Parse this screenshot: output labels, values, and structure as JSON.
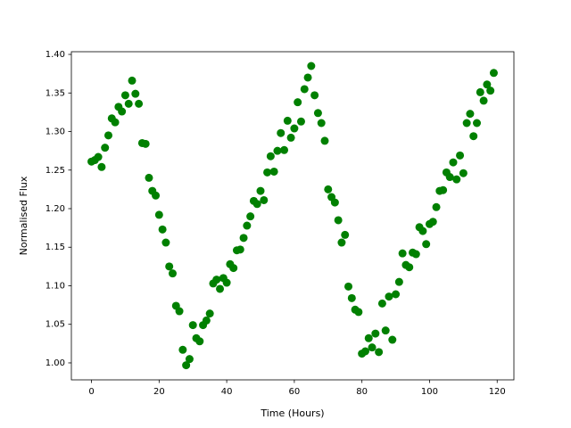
{
  "chart_data": {
    "type": "scatter",
    "xlabel": "Time (Hours)",
    "ylabel": "Normalised Flux",
    "color": "#008000",
    "x": [
      0,
      1,
      2,
      3,
      4,
      5,
      6,
      7,
      8,
      9,
      10,
      11,
      12,
      13,
      14,
      15,
      16,
      17,
      18,
      19,
      20,
      21,
      22,
      23,
      24,
      25,
      26,
      27,
      28,
      29,
      30,
      31,
      32,
      33,
      34,
      35,
      36,
      37,
      38,
      39,
      40,
      41,
      42,
      43,
      44,
      45,
      46,
      47,
      48,
      49,
      50,
      51,
      52,
      53,
      54,
      55,
      56,
      57,
      58,
      59,
      60,
      61,
      62,
      63,
      64,
      65,
      66,
      67,
      68,
      69,
      70,
      71,
      72,
      73,
      74,
      75,
      76,
      77,
      78,
      79,
      80,
      81,
      82,
      83,
      84,
      85,
      86,
      87,
      88,
      89,
      90,
      91,
      92,
      93,
      94,
      95,
      96,
      97,
      98,
      99,
      100,
      101,
      102,
      103,
      104,
      105,
      106,
      107,
      108,
      109,
      110,
      111,
      112,
      113,
      114,
      115,
      116,
      117,
      118,
      119
    ],
    "values": [
      1.261,
      1.263,
      1.267,
      1.254,
      1.279,
      1.295,
      1.317,
      1.312,
      1.332,
      1.326,
      1.347,
      1.336,
      1.366,
      1.349,
      1.336,
      1.285,
      1.284,
      1.24,
      1.223,
      1.217,
      1.192,
      1.173,
      1.156,
      1.125,
      1.116,
      1.074,
      1.067,
      1.017,
      0.997,
      1.005,
      1.049,
      1.032,
      1.028,
      1.049,
      1.055,
      1.064,
      1.103,
      1.108,
      1.096,
      1.11,
      1.104,
      1.128,
      1.123,
      1.146,
      1.147,
      1.162,
      1.178,
      1.19,
      1.21,
      1.206,
      1.223,
      1.211,
      1.247,
      1.268,
      1.248,
      1.275,
      1.298,
      1.276,
      1.314,
      1.292,
      1.304,
      1.338,
      1.313,
      1.355,
      1.37,
      1.385,
      1.347,
      1.324,
      1.311,
      1.288,
      1.225,
      1.215,
      1.208,
      1.185,
      1.156,
      1.166,
      1.099,
      1.084,
      1.069,
      1.066,
      1.012,
      1.015,
      1.032,
      1.02,
      1.038,
      1.014,
      1.077,
      1.042,
      1.086,
      1.03,
      1.089,
      1.105,
      1.142,
      1.127,
      1.124,
      1.143,
      1.141,
      1.176,
      1.171,
      1.154,
      1.18,
      1.183,
      1.202,
      1.223,
      1.224,
      1.247,
      1.241,
      1.26,
      1.238,
      1.269,
      1.246,
      1.311,
      1.323,
      1.294,
      1.311,
      1.351,
      1.34,
      1.361,
      1.353,
      1.376
    ],
    "xlim": [
      -5.95,
      124.95
    ],
    "ylim": [
      0.978,
      1.4035
    ],
    "xticks": [
      0,
      20,
      40,
      60,
      80,
      100,
      120
    ],
    "yticks": [
      {
        "value": 1.0,
        "label": "1.00"
      },
      1.05,
      {
        "value": 1.1,
        "label": "1.10"
      },
      1.15,
      {
        "value": 1.2,
        "label": "1.20"
      },
      1.25,
      {
        "value": 1.3,
        "label": "1.30"
      },
      1.35,
      {
        "value": 1.4,
        "label": "1.40"
      }
    ]
  }
}
